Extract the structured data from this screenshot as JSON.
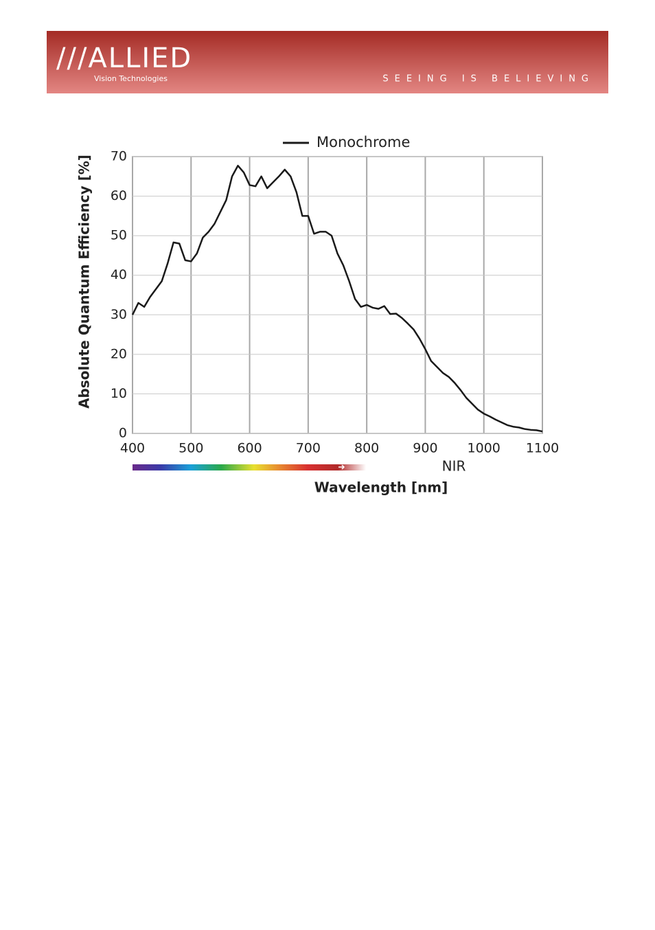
{
  "header": {
    "logo": "///ALLIED",
    "subtitle": "Vision Technologies",
    "tagline": "SEEING IS BELIEVING"
  },
  "chart_data": {
    "type": "line",
    "legend": "top",
    "y_label": "Absolute Quantum Efficiency [%]",
    "x_label": "Wavelength [nm]",
    "annotation": "NIR",
    "grid": true,
    "x": [
      400,
      410,
      420,
      430,
      440,
      450,
      460,
      470,
      480,
      490,
      500,
      510,
      520,
      530,
      540,
      550,
      560,
      570,
      580,
      590,
      600,
      610,
      620,
      630,
      640,
      650,
      660,
      670,
      680,
      690,
      700,
      710,
      720,
      730,
      740,
      750,
      760,
      770,
      780,
      790,
      800,
      810,
      820,
      830,
      840,
      850,
      860,
      870,
      880,
      890,
      900,
      910,
      920,
      930,
      940,
      950,
      960,
      970,
      980,
      990,
      1000,
      1010,
      1020,
      1030,
      1040,
      1050,
      1060,
      1070,
      1080,
      1090,
      1100
    ],
    "series": [
      {
        "name": "Monochrome",
        "color": "#1a1a1a",
        "values": [
          30,
          33,
          32,
          34.5,
          36.5,
          38.5,
          43,
          48.3,
          48,
          43.8,
          43.5,
          45.5,
          49.5,
          51,
          53,
          56,
          59,
          65,
          67.7,
          66,
          62.8,
          62.5,
          65,
          62,
          63.5,
          65,
          66.7,
          65,
          61,
          55,
          55,
          50.5,
          51,
          51,
          50,
          45.5,
          42.5,
          38.5,
          34,
          32,
          32.5,
          31.8,
          31.5,
          32.2,
          30.2,
          30.3,
          29.2,
          27.8,
          26.3,
          24,
          21.3,
          18.3,
          16.8,
          15.3,
          14.3,
          12.8,
          11,
          9,
          7.5,
          6,
          5,
          4.3,
          3.5,
          2.8,
          2.1,
          1.7,
          1.5,
          1.1,
          0.9,
          0.8,
          0.5
        ]
      }
    ],
    "xlim": [
      400,
      1100
    ],
    "xticks": [
      400,
      500,
      600,
      700,
      800,
      900,
      1000,
      1100
    ],
    "ylim": [
      0,
      70
    ],
    "yticks": [
      0,
      10,
      20,
      30,
      40,
      50,
      60,
      70
    ]
  }
}
